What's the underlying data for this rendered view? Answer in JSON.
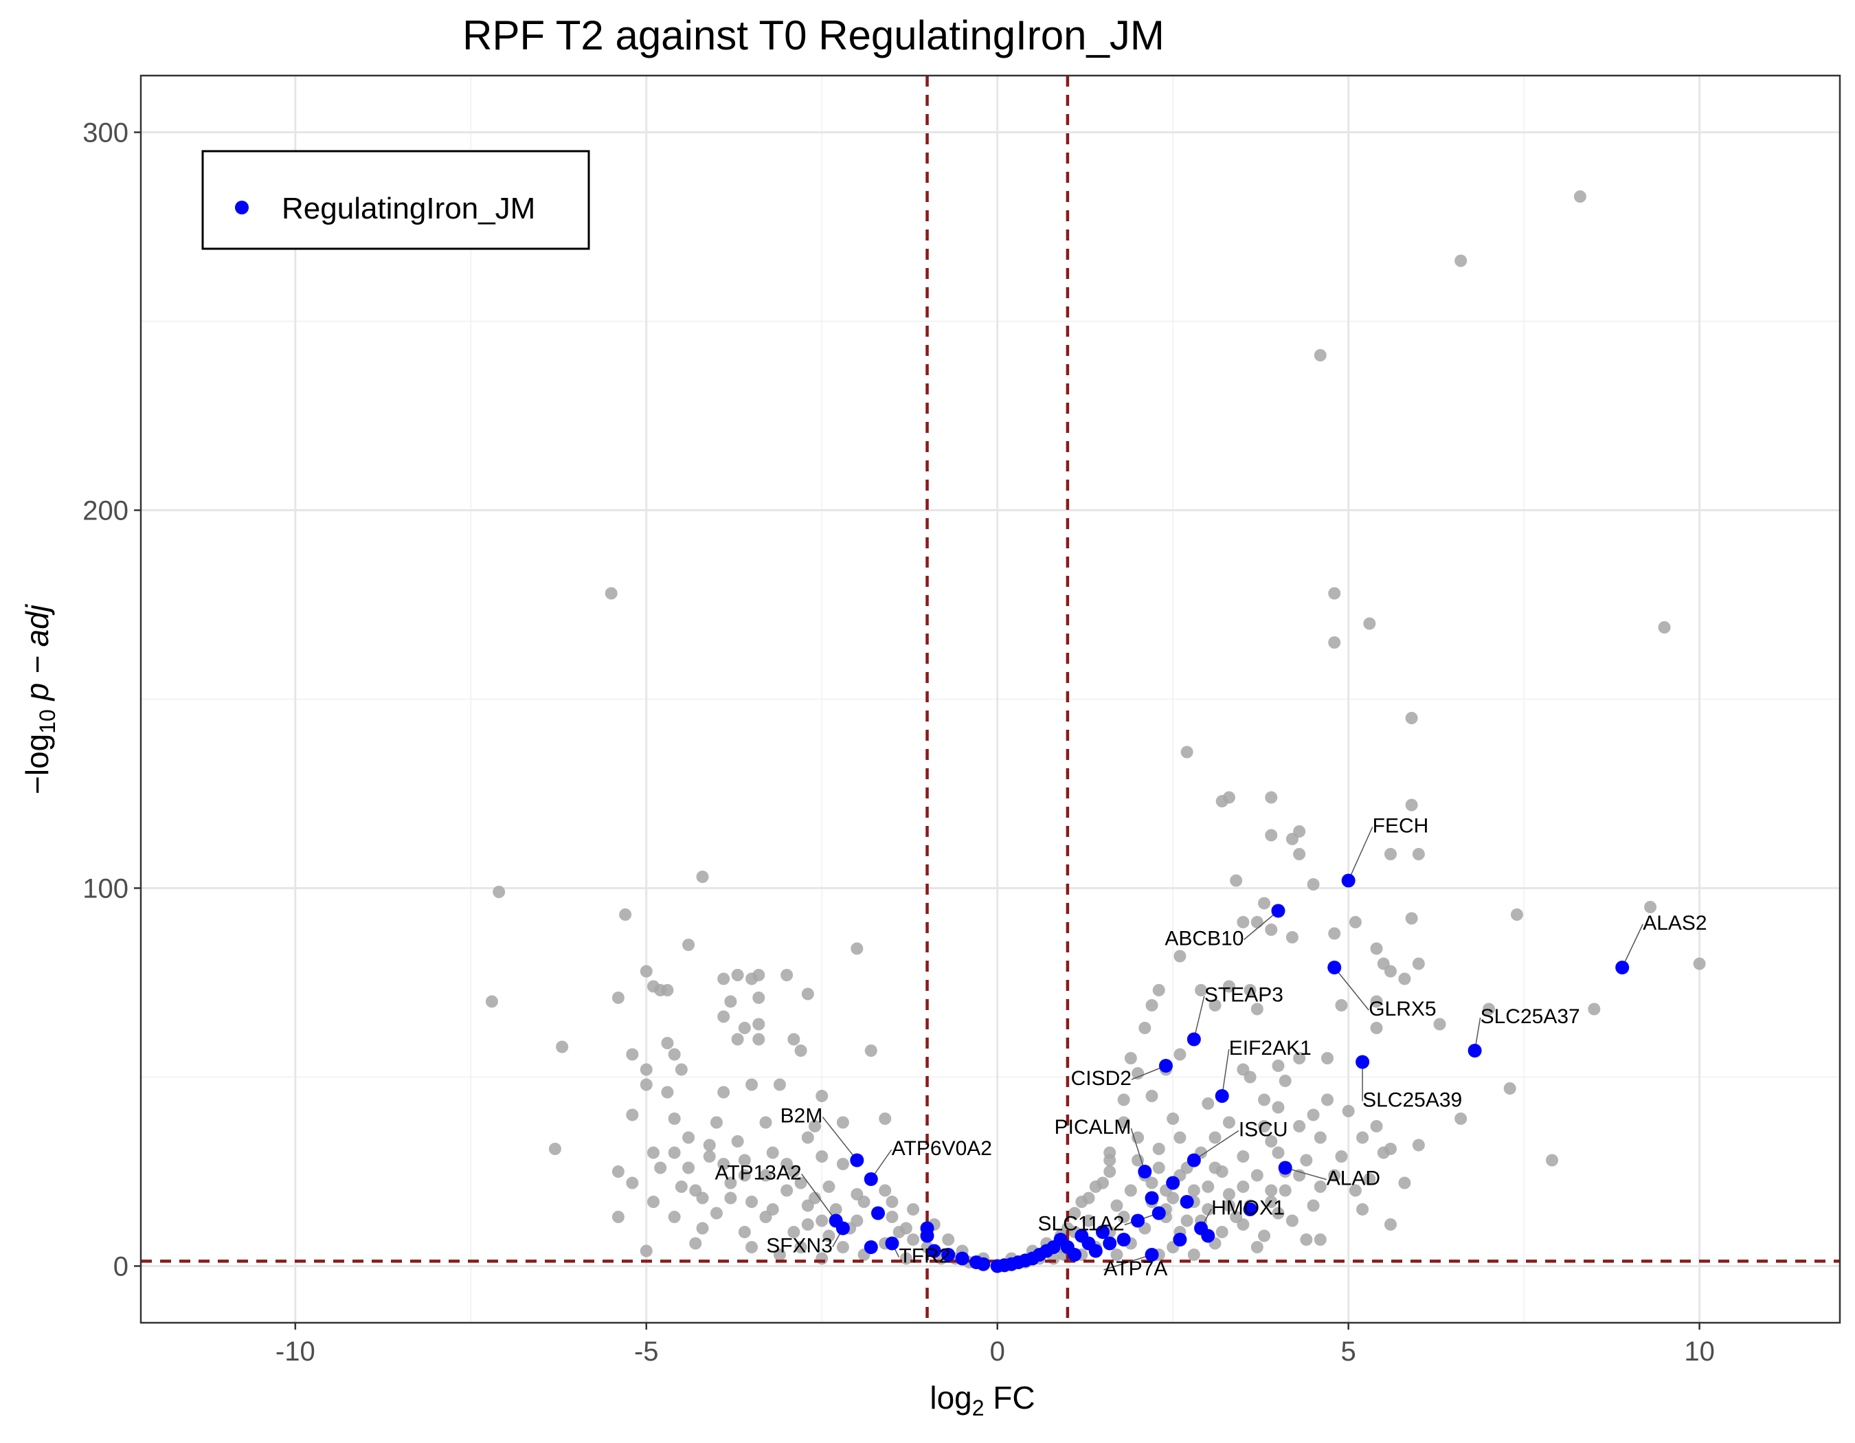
{
  "chart_data": {
    "type": "scatter",
    "title": "RPF T2 against T0 RegulatingIron_JM",
    "xlabel": {
      "prefix": "log",
      "sub": "2",
      "suffix": " FC"
    },
    "ylabel": {
      "prefix": "−log",
      "sub": "10",
      "suffix": " p − adj"
    },
    "xlim": [
      -12.2,
      12
    ],
    "ylim": [
      -15,
      315
    ],
    "x_ticks": [
      -10,
      -5,
      0,
      5,
      10
    ],
    "x_tick_labels": [
      "-10",
      "-5",
      "0",
      "5",
      "10"
    ],
    "y_ticks": [
      0,
      100,
      200,
      300
    ],
    "y_tick_labels": [
      "0",
      "100",
      "200",
      "300"
    ],
    "grid": true,
    "thresholds": {
      "x": [
        -1,
        1
      ],
      "y": 1.3,
      "color": "#8b1a1a",
      "style": "dashed"
    },
    "legend": {
      "position": "top-left",
      "entries": [
        {
          "label": "RegulatingIron_JM",
          "color": "#0000ff"
        }
      ]
    },
    "colors": {
      "background": "#a6a6a6",
      "highlight": "#0000ff"
    },
    "background_points": [
      [
        8.3,
        283
      ],
      [
        6.6,
        266
      ],
      [
        4.6,
        241
      ],
      [
        -5.5,
        178
      ],
      [
        4.8,
        178
      ],
      [
        5.3,
        170
      ],
      [
        9.5,
        169
      ],
      [
        4.8,
        165
      ],
      [
        5.9,
        145
      ],
      [
        2.7,
        136
      ],
      [
        3.3,
        124
      ],
      [
        3.9,
        124
      ],
      [
        3.2,
        123
      ],
      [
        5.9,
        122
      ],
      [
        4.3,
        115
      ],
      [
        3.9,
        114
      ],
      [
        4.2,
        113
      ],
      [
        4.3,
        109
      ],
      [
        5.6,
        109
      ],
      [
        6.0,
        109
      ],
      [
        -4.2,
        103
      ],
      [
        3.4,
        102
      ],
      [
        4.5,
        101
      ],
      [
        -7.1,
        99
      ],
      [
        3.8,
        96
      ],
      [
        9.3,
        95
      ],
      [
        7.4,
        93
      ],
      [
        -5.3,
        93
      ],
      [
        3.5,
        91
      ],
      [
        3.7,
        91
      ],
      [
        5.1,
        91
      ],
      [
        5.9,
        92
      ],
      [
        3.9,
        89
      ],
      [
        4.2,
        87
      ],
      [
        4.8,
        88
      ],
      [
        -4.4,
        85
      ],
      [
        -2.0,
        84
      ],
      [
        5.4,
        84
      ],
      [
        2.6,
        82
      ],
      [
        5.5,
        80
      ],
      [
        6.0,
        80
      ],
      [
        10.0,
        80
      ],
      [
        5.6,
        78
      ],
      [
        -5.0,
        78
      ],
      [
        -4.9,
        74
      ],
      [
        -3.7,
        77
      ],
      [
        -3.5,
        76
      ],
      [
        -3.0,
        77
      ],
      [
        -3.4,
        77
      ],
      [
        -3.9,
        76
      ],
      [
        -4.8,
        73
      ],
      [
        -4.7,
        73
      ],
      [
        2.3,
        73
      ],
      [
        2.9,
        73
      ],
      [
        3.3,
        74
      ],
      [
        3.6,
        73
      ],
      [
        5.8,
        76
      ],
      [
        -7.2,
        70
      ],
      [
        -5.4,
        71
      ],
      [
        -2.7,
        72
      ],
      [
        -3.8,
        70
      ],
      [
        -3.4,
        71
      ],
      [
        2.2,
        69
      ],
      [
        3.1,
        69
      ],
      [
        3.7,
        68
      ],
      [
        4.9,
        69
      ],
      [
        5.4,
        70
      ],
      [
        8.5,
        68
      ],
      [
        7.0,
        68
      ],
      [
        -3.9,
        66
      ],
      [
        -3.4,
        64
      ],
      [
        -3.6,
        63
      ],
      [
        2.1,
        63
      ],
      [
        5.4,
        63
      ],
      [
        6.3,
        64
      ],
      [
        -3.7,
        60
      ],
      [
        -3.4,
        60
      ],
      [
        -2.9,
        60
      ],
      [
        -4.7,
        59
      ],
      [
        -6.2,
        58
      ],
      [
        -4.6,
        56
      ],
      [
        -5.2,
        56
      ],
      [
        -2.8,
        57
      ],
      [
        -1.8,
        57
      ],
      [
        2.6,
        56
      ],
      [
        4.3,
        55
      ],
      [
        4.7,
        55
      ],
      [
        3.5,
        52
      ],
      [
        4.0,
        53
      ],
      [
        -5.0,
        52
      ],
      [
        -4.5,
        52
      ],
      [
        1.9,
        55
      ],
      [
        2.0,
        51
      ],
      [
        2.4,
        52
      ],
      [
        3.6,
        50
      ],
      [
        4.1,
        49
      ],
      [
        7.3,
        47
      ],
      [
        4.7,
        44
      ],
      [
        -5.0,
        48
      ],
      [
        -4.7,
        46
      ],
      [
        -3.9,
        46
      ],
      [
        -3.5,
        48
      ],
      [
        -3.1,
        48
      ],
      [
        -2.5,
        45
      ],
      [
        1.8,
        44
      ],
      [
        2.2,
        45
      ],
      [
        3.0,
        43
      ],
      [
        3.8,
        44
      ],
      [
        4.0,
        42
      ],
      [
        4.5,
        40
      ],
      [
        5.0,
        41
      ],
      [
        6.6,
        39
      ],
      [
        -5.2,
        40
      ],
      [
        -4.6,
        39
      ],
      [
        -4.0,
        38
      ],
      [
        -3.3,
        38
      ],
      [
        -2.6,
        37
      ],
      [
        -2.2,
        38
      ],
      [
        -1.6,
        39
      ],
      [
        1.8,
        38
      ],
      [
        2.5,
        39
      ],
      [
        3.3,
        38
      ],
      [
        3.8,
        37
      ],
      [
        4.3,
        37
      ],
      [
        5.4,
        37
      ],
      [
        -4.4,
        34
      ],
      [
        -3.7,
        33
      ],
      [
        -2.7,
        34
      ],
      [
        2.0,
        34
      ],
      [
        2.6,
        34
      ],
      [
        3.1,
        34
      ],
      [
        3.9,
        33
      ],
      [
        4.6,
        34
      ],
      [
        5.2,
        34
      ],
      [
        5.6,
        31
      ],
      [
        6.0,
        32
      ],
      [
        -6.3,
        31
      ],
      [
        -4.9,
        30
      ],
      [
        -4.1,
        29
      ],
      [
        -3.2,
        30
      ],
      [
        -2.5,
        29
      ],
      [
        1.6,
        30
      ],
      [
        2.3,
        31
      ],
      [
        2.9,
        30
      ],
      [
        3.5,
        29
      ],
      [
        4.0,
        30
      ],
      [
        4.4,
        28
      ],
      [
        4.9,
        29
      ],
      [
        5.5,
        30
      ],
      [
        7.9,
        28
      ],
      [
        -5.4,
        25
      ],
      [
        -4.8,
        26
      ],
      [
        -3.6,
        24
      ],
      [
        -2.9,
        25
      ],
      [
        1.6,
        25
      ],
      [
        2.1,
        24
      ],
      [
        2.7,
        26
      ],
      [
        3.2,
        25
      ],
      [
        3.7,
        24
      ],
      [
        4.1,
        25
      ],
      [
        4.8,
        24
      ],
      [
        5.3,
        23
      ],
      [
        5.8,
        22
      ],
      [
        -5.2,
        22
      ],
      [
        -4.5,
        21
      ],
      [
        -3.8,
        22
      ],
      [
        -3.0,
        20
      ],
      [
        -2.4,
        21
      ],
      [
        -1.6,
        20
      ],
      [
        1.4,
        21
      ],
      [
        1.9,
        20
      ],
      [
        2.4,
        20
      ],
      [
        3.0,
        21
      ],
      [
        3.5,
        21
      ],
      [
        4.1,
        20
      ],
      [
        4.6,
        21
      ],
      [
        5.1,
        20
      ],
      [
        -4.9,
        17
      ],
      [
        -4.2,
        18
      ],
      [
        -3.5,
        17
      ],
      [
        -2.7,
        16
      ],
      [
        -1.9,
        17
      ],
      [
        1.2,
        17
      ],
      [
        1.7,
        16
      ],
      [
        2.2,
        17
      ],
      [
        2.8,
        17
      ],
      [
        3.3,
        16
      ],
      [
        3.9,
        17
      ],
      [
        4.5,
        16
      ],
      [
        5.2,
        15
      ],
      [
        -5.4,
        13
      ],
      [
        -4.6,
        13
      ],
      [
        -4.0,
        14
      ],
      [
        -3.3,
        13
      ],
      [
        -2.5,
        12
      ],
      [
        -1.5,
        13
      ],
      [
        1.3,
        12
      ],
      [
        1.8,
        13
      ],
      [
        2.4,
        13
      ],
      [
        2.9,
        12
      ],
      [
        3.5,
        11
      ],
      [
        4.2,
        12
      ],
      [
        5.6,
        11
      ],
      [
        -4.2,
        10
      ],
      [
        -3.6,
        9
      ],
      [
        -2.9,
        9
      ],
      [
        -2.1,
        10
      ],
      [
        -1.3,
        10
      ],
      [
        1.1,
        9
      ],
      [
        1.6,
        9
      ],
      [
        2.1,
        10
      ],
      [
        2.6,
        9
      ],
      [
        3.2,
        9
      ],
      [
        3.8,
        8
      ],
      [
        4.4,
        7
      ],
      [
        4.6,
        7
      ],
      [
        -5.0,
        4
      ],
      [
        -4.3,
        6
      ],
      [
        -3.5,
        5
      ],
      [
        -2.8,
        5
      ],
      [
        -2.2,
        5
      ],
      [
        -1.6,
        6
      ],
      [
        -1.0,
        5
      ],
      [
        0.9,
        5
      ],
      [
        1.4,
        5
      ],
      [
        1.9,
        6
      ],
      [
        2.5,
        5
      ],
      [
        3.1,
        6
      ],
      [
        3.7,
        5
      ],
      [
        -3.1,
        3
      ],
      [
        -2.5,
        2
      ],
      [
        -1.9,
        3
      ],
      [
        -1.3,
        2
      ],
      [
        -0.8,
        2
      ],
      [
        -0.4,
        1
      ],
      [
        0.1,
        0.5
      ],
      [
        0.4,
        1
      ],
      [
        0.8,
        2
      ],
      [
        1.2,
        3
      ],
      [
        1.7,
        3
      ],
      [
        2.3,
        3
      ],
      [
        2.8,
        3
      ],
      [
        -2.3,
        15
      ],
      [
        -2.0,
        19
      ],
      [
        -1.7,
        14
      ],
      [
        -1.4,
        9
      ],
      [
        -1.2,
        7
      ],
      [
        -0.9,
        4
      ],
      [
        -0.6,
        2
      ],
      [
        -0.3,
        1
      ],
      [
        0.3,
        1
      ],
      [
        0.6,
        2
      ],
      [
        0.95,
        3
      ],
      [
        1.0,
        10
      ],
      [
        1.1,
        14
      ],
      [
        1.3,
        18
      ],
      [
        1.5,
        22
      ],
      [
        1.6,
        28
      ],
      [
        2.0,
        28
      ],
      [
        2.2,
        22
      ],
      [
        2.3,
        26
      ],
      [
        2.4,
        15
      ],
      [
        2.5,
        18
      ],
      [
        2.6,
        24
      ],
      [
        2.7,
        12
      ],
      [
        2.8,
        20
      ],
      [
        3.0,
        15
      ],
      [
        3.1,
        26
      ],
      [
        3.3,
        19
      ],
      [
        3.4,
        13
      ],
      [
        3.6,
        16
      ],
      [
        3.9,
        20
      ],
      [
        4.0,
        14
      ],
      [
        4.3,
        24
      ],
      [
        -2.6,
        18
      ],
      [
        -2.8,
        22
      ],
      [
        -3.0,
        27
      ],
      [
        -3.3,
        24
      ],
      [
        -3.6,
        28
      ],
      [
        -3.9,
        27
      ],
      [
        -4.1,
        32
      ],
      [
        -4.4,
        26
      ],
      [
        -4.6,
        30
      ],
      [
        -2.2,
        27
      ],
      [
        -2.0,
        12
      ],
      [
        -2.4,
        8
      ],
      [
        -2.7,
        11
      ],
      [
        -3.2,
        15
      ],
      [
        -3.8,
        18
      ],
      [
        -4.3,
        20
      ],
      [
        -1.5,
        17
      ],
      [
        -1.2,
        15
      ],
      [
        -0.9,
        11
      ],
      [
        -0.7,
        7
      ],
      [
        -0.5,
        4
      ],
      [
        -0.2,
        2
      ],
      [
        0.2,
        2
      ],
      [
        0.5,
        4
      ],
      [
        0.7,
        6
      ],
      [
        0.9,
        8
      ]
    ],
    "highlight_points": [
      {
        "x": 5.0,
        "y": 102,
        "label": "FECH"
      },
      {
        "x": 4.0,
        "y": 94,
        "label": "ABCB10"
      },
      {
        "x": 8.9,
        "y": 79,
        "label": "ALAS2"
      },
      {
        "x": 4.8,
        "y": 79,
        "label": "GLRX5"
      },
      {
        "x": 2.8,
        "y": 60,
        "label": "STEAP3"
      },
      {
        "x": 6.8,
        "y": 57,
        "label": "SLC25A37"
      },
      {
        "x": 5.2,
        "y": 54,
        "label": "SLC25A39"
      },
      {
        "x": 2.4,
        "y": 53,
        "label": "CISD2"
      },
      {
        "x": 3.2,
        "y": 45,
        "label": "EIF2AK1"
      },
      {
        "x": 2.8,
        "y": 28,
        "label": "ISCU"
      },
      {
        "x": 4.1,
        "y": 26,
        "label": "ALAD"
      },
      {
        "x": 2.1,
        "y": 25,
        "label": "PICALM"
      },
      {
        "x": 2.3,
        "y": 14,
        "label": "SLC11A2"
      },
      {
        "x": 2.9,
        "y": 10,
        "label": "HMOX1"
      },
      {
        "x": 2.2,
        "y": 3,
        "label": "ATP7A"
      },
      {
        "x": -2.0,
        "y": 28,
        "label": "B2M"
      },
      {
        "x": -1.8,
        "y": 23,
        "label": "ATP6V0A2"
      },
      {
        "x": -2.3,
        "y": 12,
        "label": "ATP13A2"
      },
      {
        "x": -1.5,
        "y": 6,
        "label": "TFR2"
      },
      {
        "x": -2.2,
        "y": 10,
        "label": "SFXN3"
      },
      {
        "x": -1.7,
        "y": 14
      },
      {
        "x": -1.8,
        "y": 5
      },
      {
        "x": -1.0,
        "y": 10
      },
      {
        "x": -1.0,
        "y": 8
      },
      {
        "x": -0.9,
        "y": 4
      },
      {
        "x": -0.7,
        "y": 3
      },
      {
        "x": -0.5,
        "y": 2
      },
      {
        "x": -0.3,
        "y": 1
      },
      {
        "x": -0.2,
        "y": 0.5
      },
      {
        "x": 0,
        "y": 0
      },
      {
        "x": 0.1,
        "y": 0.2
      },
      {
        "x": 0.2,
        "y": 0.5
      },
      {
        "x": 0.3,
        "y": 1
      },
      {
        "x": 0.4,
        "y": 1.5
      },
      {
        "x": 0.5,
        "y": 2
      },
      {
        "x": 0.6,
        "y": 3
      },
      {
        "x": 0.7,
        "y": 4
      },
      {
        "x": 0.8,
        "y": 5
      },
      {
        "x": 0.9,
        "y": 7
      },
      {
        "x": 1.0,
        "y": 5
      },
      {
        "x": 1.1,
        "y": 3
      },
      {
        "x": 1.2,
        "y": 8
      },
      {
        "x": 1.3,
        "y": 6
      },
      {
        "x": 1.4,
        "y": 4
      },
      {
        "x": 1.5,
        "y": 9
      },
      {
        "x": 1.6,
        "y": 6
      },
      {
        "x": 1.8,
        "y": 7
      },
      {
        "x": 2.0,
        "y": 12
      },
      {
        "x": 2.2,
        "y": 18
      },
      {
        "x": 2.5,
        "y": 22
      },
      {
        "x": 2.7,
        "y": 17
      },
      {
        "x": 3.6,
        "y": 15
      },
      {
        "x": 3.0,
        "y": 8
      },
      {
        "x": 2.6,
        "y": 7
      }
    ]
  }
}
